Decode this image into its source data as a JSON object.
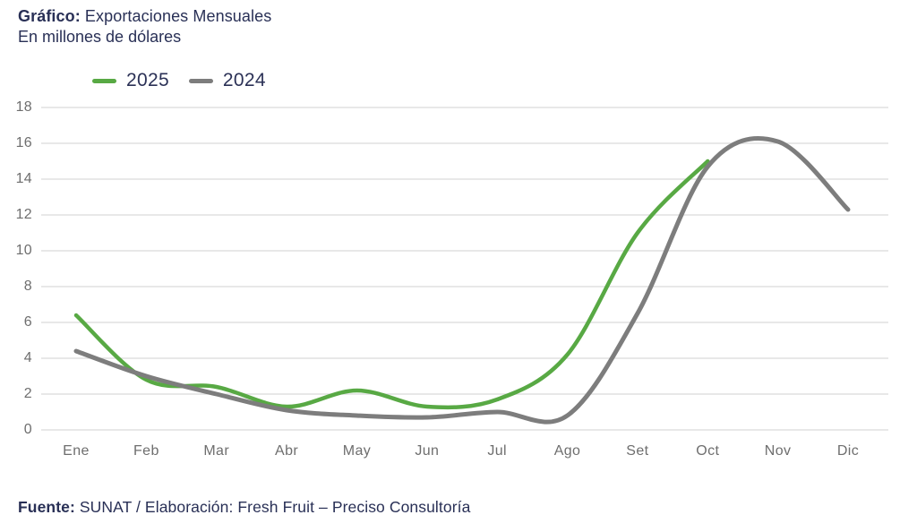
{
  "header": {
    "title_label": "Gráfico:",
    "title": " Exportaciones Mensuales",
    "subtitle": "En millones de dólares"
  },
  "legend": {
    "items": [
      {
        "label": "2025",
        "color": "#58a944"
      },
      {
        "label": "2024",
        "color": "#7d7d7d"
      }
    ]
  },
  "footer": {
    "source_label": "Fuente:",
    "source_text": " SUNAT / Elaboración: Fresh Fruit – Preciso Consultoría"
  },
  "colors": {
    "title_navy": "#293056",
    "axis_label_gray": "#6e6e6e",
    "gridline": "#d9d9d9",
    "series_2025_green": "#58a944",
    "series_2024_gray": "#7d7d7d"
  },
  "chart_data": {
    "type": "line",
    "title": "Gráfico: Exportaciones Mensuales",
    "subtitle": "En millones de dólares",
    "categories": [
      "Ene",
      "Feb",
      "Mar",
      "Abr",
      "May",
      "Jun",
      "Jul",
      "Ago",
      "Set",
      "Oct",
      "Nov",
      "Dic"
    ],
    "series": [
      {
        "name": "2025",
        "color": "#58a944",
        "values": [
          6.4,
          2.8,
          2.4,
          1.3,
          2.2,
          1.3,
          1.7,
          4.2,
          11.0,
          15.0,
          null,
          null
        ]
      },
      {
        "name": "2024",
        "color": "#7d7d7d",
        "values": [
          4.4,
          3.0,
          2.0,
          1.1,
          0.8,
          0.7,
          1.0,
          0.8,
          6.5,
          14.7,
          16.1,
          12.3
        ]
      }
    ],
    "ylim": [
      0,
      18
    ],
    "ytick_step": 2,
    "grid": true,
    "legend_position": "top-left",
    "smoothing": "spline"
  }
}
